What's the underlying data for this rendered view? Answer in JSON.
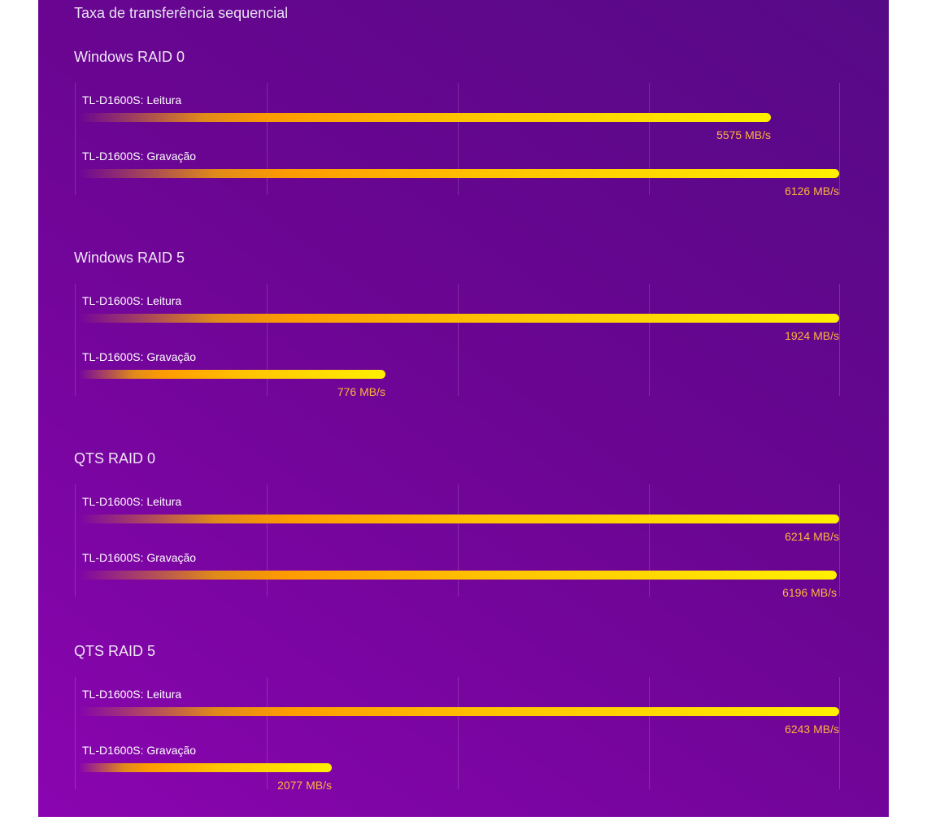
{
  "page": {
    "title": "Taxa de transferência sequencial"
  },
  "colors": {
    "background_start": "#8a05b0",
    "background_end": "#560a86",
    "bar_start": "#e08a1a",
    "bar_end": "#fff000",
    "value_text": "#ffb43c"
  },
  "chart_data": [
    {
      "type": "bar",
      "orientation": "horizontal",
      "title": "Windows RAID 0",
      "unit": "MB/s",
      "series": [
        {
          "name": "TL-D1600S: Leitura",
          "value": 5575,
          "label": "5575 MB/s"
        },
        {
          "name": "TL-D1600S: Gravação",
          "value": 6126,
          "label": "6126 MB/s"
        }
      ],
      "xlim": [
        0,
        6126
      ],
      "grid": true
    },
    {
      "type": "bar",
      "orientation": "horizontal",
      "title": "Windows RAID 5",
      "unit": "MB/s",
      "series": [
        {
          "name": "TL-D1600S: Leitura",
          "value": 1924,
          "label": "1924 MB/s"
        },
        {
          "name": "TL-D1600S: Gravação",
          "value": 776,
          "label": "776 MB/s"
        }
      ],
      "xlim": [
        0,
        1924
      ],
      "grid": true
    },
    {
      "type": "bar",
      "orientation": "horizontal",
      "title": "QTS RAID 0",
      "unit": "MB/s",
      "series": [
        {
          "name": "TL-D1600S: Leitura",
          "value": 6214,
          "label": "6214 MB/s"
        },
        {
          "name": "TL-D1600S: Gravação",
          "value": 6196,
          "label": "6196 MB/s"
        }
      ],
      "xlim": [
        0,
        6214
      ],
      "grid": true
    },
    {
      "type": "bar",
      "orientation": "horizontal",
      "title": "QTS RAID 5",
      "unit": "MB/s",
      "series": [
        {
          "name": "TL-D1600S: Leitura",
          "value": 6243,
          "label": "6243 MB/s"
        },
        {
          "name": "TL-D1600S: Gravação",
          "value": 2077,
          "label": "2077 MB/s"
        }
      ],
      "xlim": [
        0,
        6243
      ],
      "grid": true
    }
  ]
}
